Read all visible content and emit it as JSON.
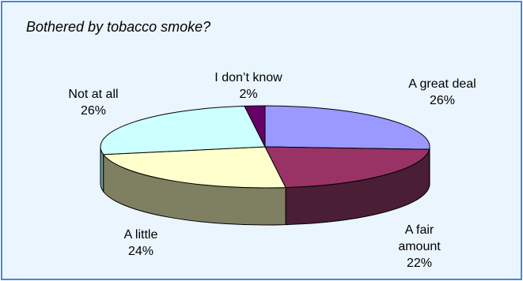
{
  "colors": {
    "panel_bg": "#EAF5FD",
    "panel_border": "#3C8BE0",
    "edge": "#000000"
  },
  "chart_data": {
    "type": "pie",
    "title": "Bothered by tobacco smoke?",
    "three_d": true,
    "legend": "none",
    "slices": [
      {
        "label_lines": [
          "A great deal",
          "26%"
        ],
        "value": 26,
        "top_color": "#9999FF",
        "side_color": "#5A5AA8"
      },
      {
        "label_lines": [
          "A fair",
          "amount",
          "22%"
        ],
        "value": 22,
        "top_color": "#993366",
        "side_color": "#4A1E34"
      },
      {
        "label_lines": [
          "A little",
          "24%"
        ],
        "value": 24,
        "top_color": "#FFFFCC",
        "side_color": "#7F7F62"
      },
      {
        "label_lines": [
          "Not at all",
          "26%"
        ],
        "value": 26,
        "top_color": "#CCFFFF",
        "side_color": "#6E9A9A"
      },
      {
        "label_lines": [
          "I don’t know",
          "2%"
        ],
        "value": 2,
        "top_color": "#660066",
        "side_color": "#330033"
      }
    ]
  }
}
